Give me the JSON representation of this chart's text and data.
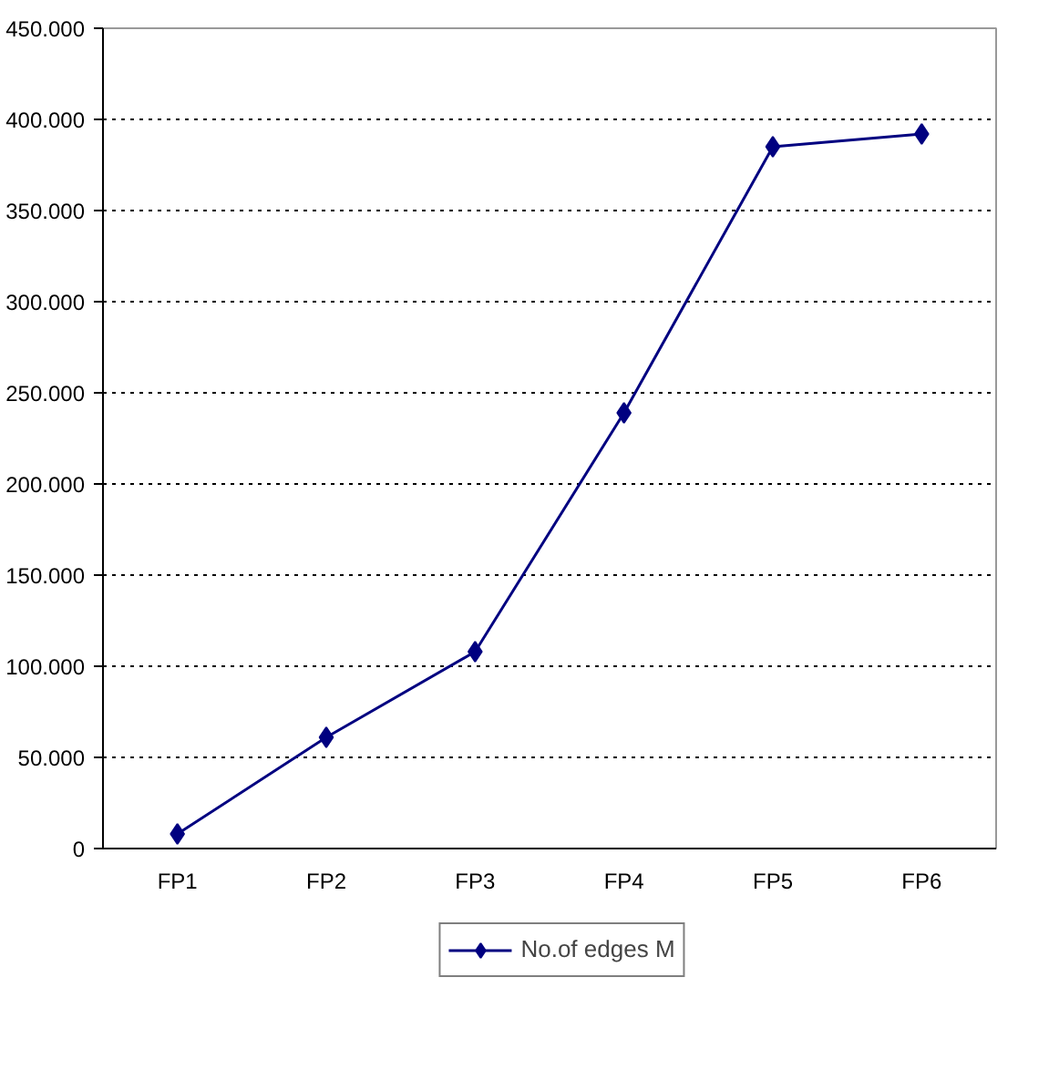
{
  "chart_data": {
    "type": "line",
    "categories": [
      "FP1",
      "FP2",
      "FP3",
      "FP4",
      "FP5",
      "FP6"
    ],
    "series": [
      {
        "name": "No.of edges M",
        "color": "#000080",
        "values": [
          8000,
          61000,
          108000,
          239000,
          385000,
          392000
        ]
      }
    ],
    "ylim": [
      0,
      450000
    ],
    "yticks": [
      0,
      {
        "value": 50000,
        "label": "50.000"
      },
      {
        "value": 100000,
        "label": "100.000"
      },
      {
        "value": 150000,
        "label": "150.000"
      },
      {
        "value": 200000,
        "label": "200.000"
      },
      {
        "value": 250000,
        "label": "250.000"
      },
      {
        "value": 300000,
        "label": "300.000"
      },
      {
        "value": 350000,
        "label": "350.000"
      },
      {
        "value": 400000,
        "label": "400.000"
      },
      {
        "value": 450000,
        "label": "450.000"
      }
    ],
    "grid": "y",
    "legend": "bottom",
    "marker": "diamond",
    "line_style": "solid"
  }
}
